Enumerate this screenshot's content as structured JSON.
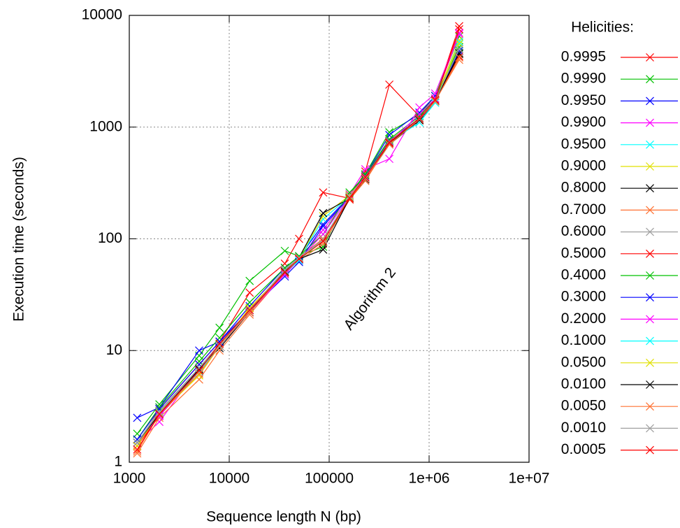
{
  "chart_data": {
    "type": "line",
    "xlabel": "Sequence length N (bp)",
    "ylabel": "Execution time (seconds)",
    "legend_title": "Helicities:",
    "legend_position": "right",
    "annotation": "Algorithm 2",
    "xscale": "log",
    "yscale": "log",
    "grid": true,
    "xlim": [
      1000,
      10000000
    ],
    "ylim": [
      1,
      10000
    ],
    "xticks": [
      1000,
      10000,
      100000,
      {
        "value": 1000000,
        "label": "1e+06"
      },
      {
        "value": 10000000,
        "label": "1e+07"
      }
    ],
    "yticks": [
      1,
      10,
      100,
      1000,
      10000
    ],
    "x": [
      1200,
      2000,
      5000,
      8000,
      16000,
      36000,
      50000,
      87000,
      160000,
      230000,
      400000,
      800000,
      1150000,
      2000000
    ],
    "series": [
      {
        "name": "0.9995",
        "color": "#ff0000",
        "values": [
          1.4,
          3.0,
          7.5,
          12,
          33,
          60,
          100,
          260,
          230,
          400,
          2400,
          1250,
          1800,
          8000
        ]
      },
      {
        "name": "0.9990",
        "color": "#00c000",
        "values": [
          1.8,
          3.3,
          9,
          16,
          42,
          78,
          70,
          85,
          250,
          380,
          900,
          1300,
          1900,
          6500
        ]
      },
      {
        "name": "0.9950",
        "color": "#0000ff",
        "values": [
          2.5,
          3.1,
          10,
          12,
          25,
          55,
          68,
          135,
          240,
          370,
          850,
          1350,
          1900,
          5000
        ]
      },
      {
        "name": "0.9900",
        "color": "#ff00ff",
        "values": [
          1.5,
          2.3,
          7,
          11,
          22,
          48,
          65,
          120,
          250,
          420,
          520,
          1500,
          2000,
          7000
        ]
      },
      {
        "name": "0.9500",
        "color": "#00ffff",
        "values": [
          1.5,
          2.6,
          6.5,
          11,
          23,
          52,
          66,
          150,
          240,
          350,
          750,
          1100,
          1700,
          5500
        ]
      },
      {
        "name": "0.9000",
        "color": "#e0e000",
        "values": [
          1.4,
          2.7,
          6,
          11,
          24,
          51,
          67,
          160,
          245,
          360,
          760,
          1200,
          1750,
          6000
        ]
      },
      {
        "name": "0.8000",
        "color": "#000000",
        "values": [
          1.5,
          2.8,
          7,
          10.5,
          22,
          50,
          68,
          170,
          230,
          340,
          700,
          1150,
          1700,
          4500
        ]
      },
      {
        "name": "0.7000",
        "color": "#ff7030",
        "values": [
          1.2,
          2.5,
          5.5,
          10,
          21,
          49,
          64,
          90,
          225,
          330,
          720,
          1180,
          1720,
          4000
        ]
      },
      {
        "name": "0.6000",
        "color": "#a0a0a0",
        "values": [
          1.5,
          2.9,
          7,
          11.5,
          23,
          53,
          70,
          95,
          240,
          355,
          740,
          1200,
          1760,
          5000
        ]
      },
      {
        "name": "0.5000",
        "color": "#ff0000",
        "values": [
          1.4,
          2.6,
          6.5,
          11,
          24,
          50,
          68,
          100,
          225,
          350,
          720,
          1150,
          1700,
          4300
        ]
      },
      {
        "name": "0.4000",
        "color": "#00c000",
        "values": [
          1.6,
          3.1,
          8,
          13,
          27,
          55,
          70,
          110,
          260,
          370,
          780,
          1250,
          1800,
          5200
        ]
      },
      {
        "name": "0.3000",
        "color": "#0000ff",
        "values": [
          1.6,
          3.0,
          7.5,
          12,
          23,
          46,
          62,
          130,
          235,
          360,
          750,
          1200,
          1750,
          4800
        ]
      },
      {
        "name": "0.2000",
        "color": "#ff00ff",
        "values": [
          1.5,
          2.6,
          6.8,
          11,
          22,
          48,
          65,
          110,
          240,
          360,
          730,
          1300,
          1800,
          6800
        ]
      },
      {
        "name": "0.1000",
        "color": "#00ffff",
        "values": [
          1.5,
          2.7,
          6.5,
          11,
          23,
          50,
          64,
          100,
          235,
          355,
          740,
          1100,
          1650,
          5800
        ]
      },
      {
        "name": "0.0500",
        "color": "#e0e000",
        "values": [
          1.4,
          2.8,
          6,
          11,
          24,
          50,
          66,
          95,
          238,
          350,
          740,
          1180,
          1700,
          5600
        ]
      },
      {
        "name": "0.0100",
        "color": "#000000",
        "values": [
          1.5,
          2.7,
          6.8,
          11,
          22,
          51,
          66,
          80,
          232,
          345,
          730,
          1160,
          1720,
          4600
        ]
      },
      {
        "name": "0.0050",
        "color": "#ff7030",
        "values": [
          1.25,
          2.7,
          6.2,
          11,
          22,
          50,
          67,
          100,
          230,
          345,
          700,
          1180,
          1700,
          4200
        ]
      },
      {
        "name": "0.0010",
        "color": "#a0a0a0",
        "values": [
          1.5,
          2.8,
          7,
          11,
          23,
          52,
          68,
          98,
          240,
          350,
          740,
          1190,
          1740,
          5000
        ]
      },
      {
        "name": "0.0005",
        "color": "#ff0000",
        "values": [
          1.3,
          2.7,
          6.6,
          11.5,
          23,
          50,
          66,
          95,
          232,
          355,
          730,
          1200,
          1750,
          7500
        ]
      }
    ]
  }
}
